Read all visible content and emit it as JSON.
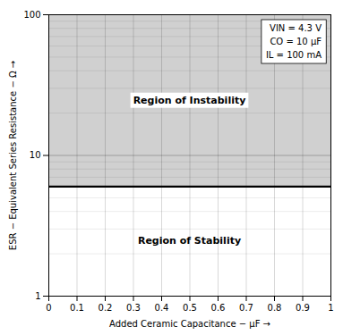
{
  "chart_data": {
    "type": "region",
    "xlabel": "Added Ceramic Capacitance − μF",
    "ylabel": "ESR − Equivalent Series Resistance − Ω",
    "xlim": [
      0,
      1.0
    ],
    "ylim": [
      1,
      100
    ],
    "log": "y",
    "xticks": [
      0,
      0.1,
      0.2,
      0.3,
      0.4,
      0.5,
      0.6,
      0.7,
      0.8,
      0.9,
      1
    ],
    "yticks": [
      1,
      10,
      100
    ],
    "grid": true,
    "boundary": 6.0,
    "color": "#000000",
    "regions": [
      {
        "name": "Region of Instability",
        "color": "#d0d0d0"
      },
      {
        "name": "Region of Stability",
        "color": "#ffffff"
      }
    ],
    "annotation": "VIN = 4.3 V\nCO = 10 μF\nIL = 100 mA"
  }
}
